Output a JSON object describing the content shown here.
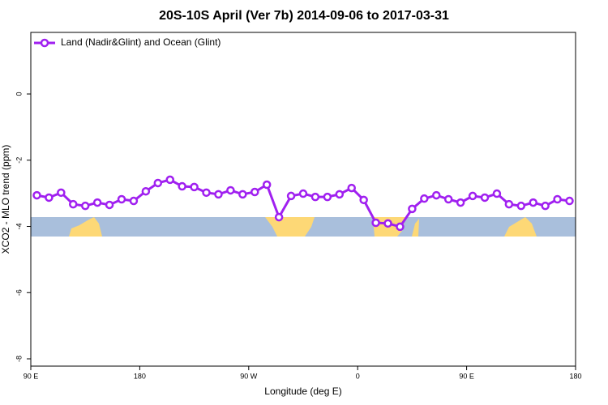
{
  "chart_data": {
    "type": "line",
    "title": "20S-10S April (Ver 7b)   2014-09-06 to 2017-03-31",
    "xlabel": "Longitude (deg E)",
    "ylabel": "XCO2 - MLO trend (ppm)",
    "x": [
      95,
      105,
      115,
      125,
      135,
      145,
      155,
      165,
      175,
      185,
      195,
      205,
      215,
      225,
      235,
      245,
      255,
      265,
      275,
      285,
      295,
      305,
      315,
      325,
      335,
      345,
      355,
      365,
      375,
      385,
      395,
      405,
      415,
      425,
      435,
      445,
      455,
      465,
      475,
      485,
      495,
      505,
      515,
      525,
      535
    ],
    "series": [
      {
        "name": "Land (Nadir&Glint) and Ocean (Glint)",
        "color": "#a020f0",
        "values": [
          -3.06,
          -3.13,
          -2.98,
          -3.33,
          -3.38,
          -3.28,
          -3.35,
          -3.18,
          -3.23,
          -2.94,
          -2.69,
          -2.59,
          -2.79,
          -2.81,
          -2.98,
          -3.03,
          -2.91,
          -3.03,
          -2.96,
          -2.74,
          -3.72,
          -3.08,
          -3.01,
          -3.11,
          -3.11,
          -3.03,
          -2.84,
          -3.2,
          -3.89,
          -3.91,
          -4.01,
          -3.47,
          -3.16,
          -3.06,
          -3.18,
          -3.28,
          -3.08,
          -3.13,
          -3.01,
          -3.33,
          -3.38,
          -3.28,
          -3.38,
          -3.18,
          -3.23
        ]
      }
    ],
    "xlim": [
      90,
      540
    ],
    "xticks": [
      {
        "value": 90,
        "label": "90 E"
      },
      {
        "value": 180,
        "label": "180"
      },
      {
        "value": 270,
        "label": "90 W"
      },
      {
        "value": 360,
        "label": "0"
      },
      {
        "value": 450,
        "label": "90 E"
      },
      {
        "value": 540,
        "label": "180"
      }
    ],
    "ylim": [
      -8.22,
      1.86
    ],
    "yticks": [
      0,
      -2,
      -4,
      -6,
      -8
    ],
    "legend": "top-left"
  }
}
